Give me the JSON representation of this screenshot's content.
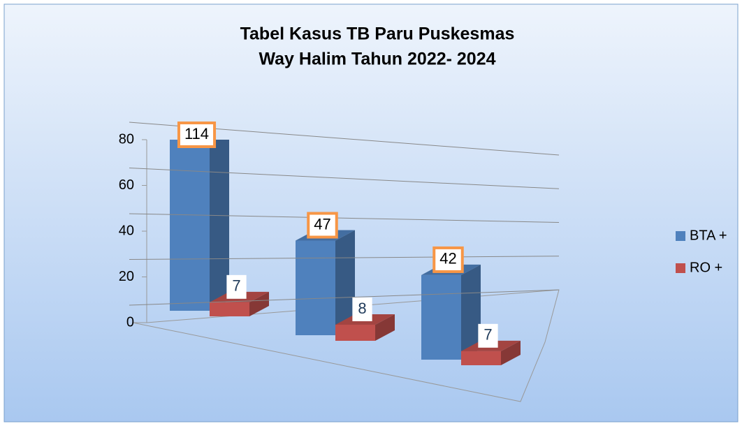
{
  "chart_data": {
    "type": "bar3d",
    "title": "Tabel Kasus TB Paru Puskesmas",
    "subtitle": "Way Halim Tahun 2022- 2024",
    "categories": [
      null,
      null,
      null
    ],
    "series": [
      {
        "name": "BTA +",
        "color": "#4f81bd",
        "values": [
          114,
          47,
          42
        ]
      },
      {
        "name": "RO +",
        "color": "#c0504d",
        "values": [
          7,
          8,
          7
        ]
      }
    ],
    "ylim": [
      0,
      80
    ],
    "yticks": [
      0,
      20,
      40,
      60,
      80
    ],
    "grid": true,
    "legend": "right"
  }
}
